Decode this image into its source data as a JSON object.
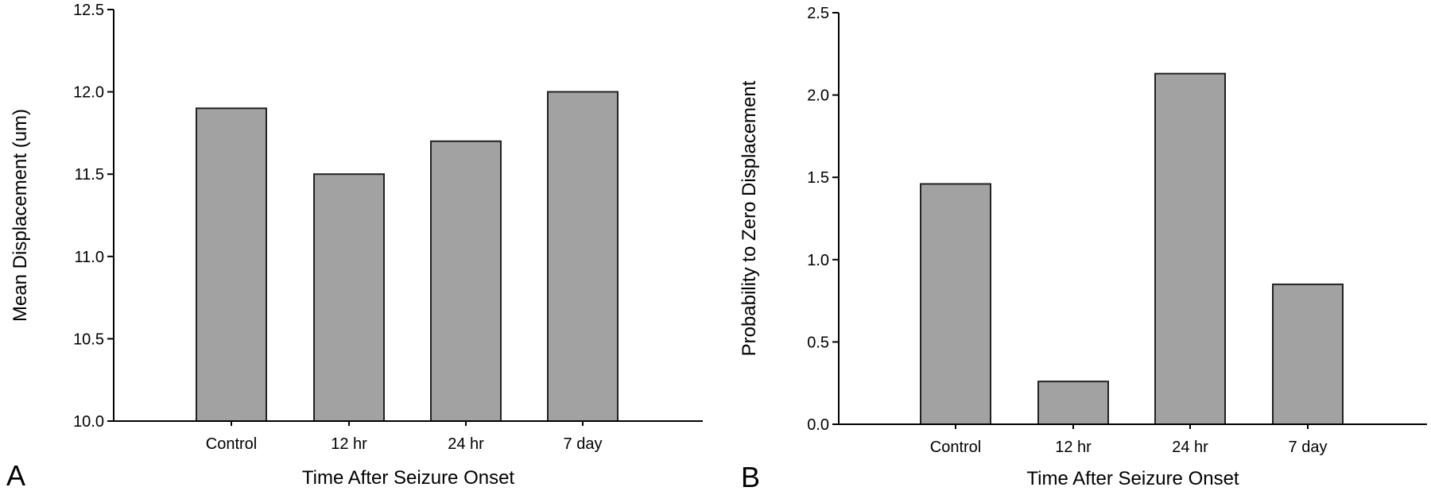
{
  "chart_data": [
    {
      "type": "bar",
      "panel_label": "A",
      "categories": [
        "Control",
        "12 hr",
        "24 hr",
        "7 day"
      ],
      "values": [
        11.9,
        11.5,
        11.7,
        12.0
      ],
      "xlabel": "Time After Seizure Onset",
      "ylabel": "Mean Displacement (um)",
      "ylim": [
        10.0,
        12.5
      ],
      "yticks": [
        10.0,
        10.5,
        11.0,
        11.5,
        12.0,
        12.5
      ],
      "ytick_labels": [
        "10.0",
        "10.5",
        "11.0",
        "11.5",
        "12.0",
        "12.5"
      ],
      "grid": false,
      "bar_color": "#a2a2a2"
    },
    {
      "type": "bar",
      "panel_label": "B",
      "categories": [
        "Control",
        "12 hr",
        "24 hr",
        "7 day"
      ],
      "values": [
        1.46,
        0.26,
        2.13,
        0.85
      ],
      "xlabel": "Time After Seizure Onset",
      "ylabel": "Probability to Zero Displacement",
      "ylim": [
        0.0,
        2.5
      ],
      "yticks": [
        0.0,
        0.5,
        1.0,
        1.5,
        2.0,
        2.5
      ],
      "ytick_labels": [
        "0.0",
        "0.5",
        "1.0",
        "1.5",
        "2.0",
        "2.5"
      ],
      "grid": false,
      "bar_color": "#a2a2a2"
    }
  ]
}
